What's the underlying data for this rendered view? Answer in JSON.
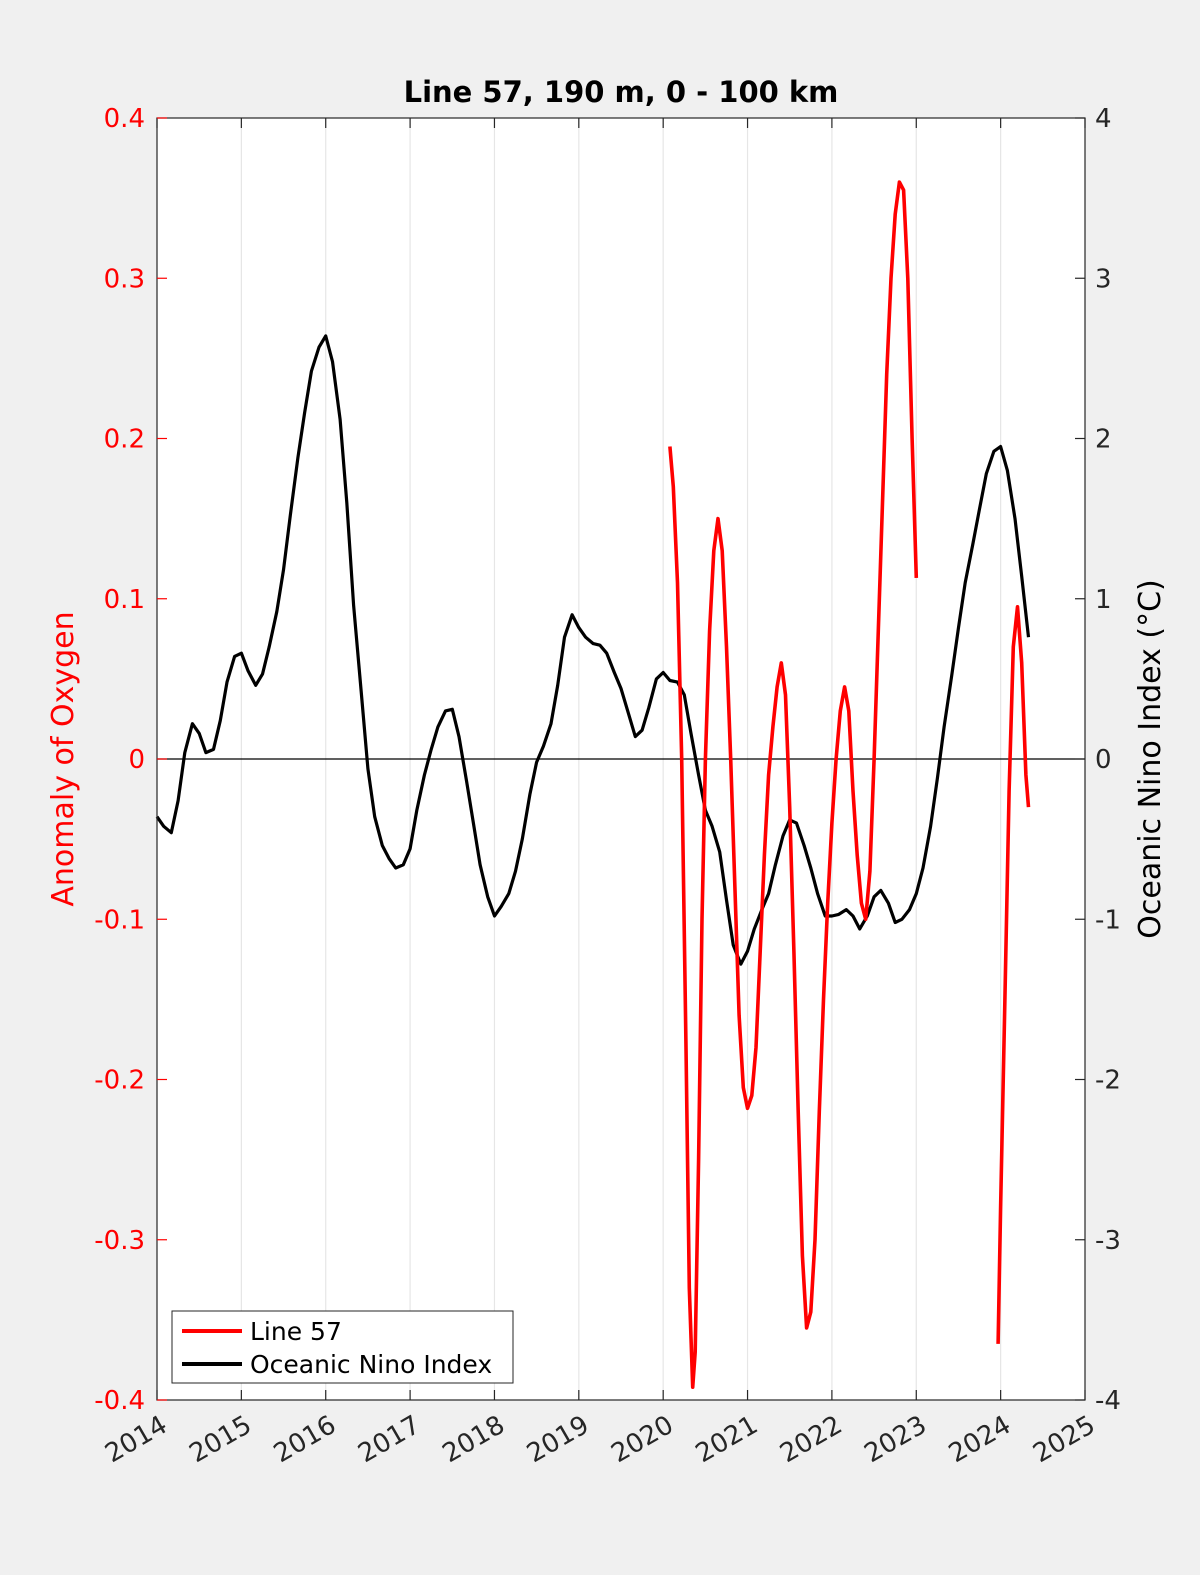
{
  "chart_data": {
    "type": "line",
    "title": "Line 57, 190 m, 0 - 100 km",
    "ylabel_left": "Anomaly of Oxygen",
    "ylabel_right": "Oceanic Nino Index (°C)",
    "xlim": [
      2014,
      2025
    ],
    "ylim_left": [
      -0.4,
      0.4
    ],
    "ylim_right": [
      -4,
      4
    ],
    "x_ticks": [
      "2014",
      "2015",
      "2016",
      "2017",
      "2018",
      "2019",
      "2020",
      "2021",
      "2022",
      "2023",
      "2024",
      "2025"
    ],
    "y_ticks_left": [
      "0.4",
      "0.3",
      "0.2",
      "0.1",
      "0",
      "-0.1",
      "-0.2",
      "-0.3",
      "-0.4"
    ],
    "y_ticks_right": [
      "4",
      "3",
      "2",
      "1",
      "0",
      "-1",
      "-2",
      "-3",
      "-4"
    ],
    "grid": "vertical",
    "legend_position": "bottom-left",
    "colors": {
      "line57": "#ff0000",
      "oni": "#000000",
      "left_axis": "#ff0000",
      "right_axis": "#000000"
    },
    "series": [
      {
        "name": "Line 57",
        "axis": "left",
        "segments": [
          [
            [
              2020.08,
              0.195
            ],
            [
              2020.12,
              0.17
            ],
            [
              2020.17,
              0.11
            ],
            [
              2020.22,
              0.0
            ],
            [
              2020.27,
              -0.18
            ],
            [
              2020.31,
              -0.33
            ],
            [
              2020.35,
              -0.392
            ],
            [
              2020.38,
              -0.37
            ],
            [
              2020.42,
              -0.25
            ],
            [
              2020.46,
              -0.1
            ],
            [
              2020.5,
              0.0
            ],
            [
              2020.55,
              0.08
            ],
            [
              2020.6,
              0.13
            ],
            [
              2020.65,
              0.15
            ],
            [
              2020.7,
              0.13
            ],
            [
              2020.75,
              0.07
            ],
            [
              2020.8,
              0.0
            ],
            [
              2020.85,
              -0.08
            ],
            [
              2020.9,
              -0.16
            ],
            [
              2020.95,
              -0.205
            ],
            [
              2021.0,
              -0.218
            ],
            [
              2021.05,
              -0.21
            ],
            [
              2021.1,
              -0.18
            ],
            [
              2021.15,
              -0.12
            ],
            [
              2021.2,
              -0.06
            ],
            [
              2021.25,
              -0.01
            ],
            [
              2021.3,
              0.02
            ],
            [
              2021.35,
              0.045
            ],
            [
              2021.4,
              0.06
            ],
            [
              2021.45,
              0.04
            ],
            [
              2021.5,
              -0.03
            ],
            [
              2021.55,
              -0.12
            ],
            [
              2021.6,
              -0.22
            ],
            [
              2021.65,
              -0.31
            ],
            [
              2021.7,
              -0.355
            ],
            [
              2021.75,
              -0.345
            ],
            [
              2021.8,
              -0.3
            ],
            [
              2021.85,
              -0.22
            ],
            [
              2021.9,
              -0.15
            ],
            [
              2021.95,
              -0.09
            ],
            [
              2022.0,
              -0.04
            ],
            [
              2022.05,
              0.0
            ],
            [
              2022.1,
              0.03
            ],
            [
              2022.15,
              0.045
            ],
            [
              2022.2,
              0.03
            ],
            [
              2022.25,
              -0.02
            ],
            [
              2022.3,
              -0.06
            ],
            [
              2022.35,
              -0.09
            ],
            [
              2022.4,
              -0.1
            ],
            [
              2022.45,
              -0.07
            ],
            [
              2022.5,
              0.0
            ],
            [
              2022.55,
              0.08
            ],
            [
              2022.6,
              0.16
            ],
            [
              2022.65,
              0.24
            ],
            [
              2022.7,
              0.3
            ],
            [
              2022.75,
              0.34
            ],
            [
              2022.8,
              0.36
            ],
            [
              2022.85,
              0.355
            ],
            [
              2022.9,
              0.3
            ],
            [
              2022.95,
              0.2
            ],
            [
              2023.0,
              0.113
            ]
          ],
          [
            [
              2023.97,
              -0.365
            ],
            [
              2024.0,
              -0.28
            ],
            [
              2024.05,
              -0.15
            ],
            [
              2024.1,
              -0.02
            ],
            [
              2024.15,
              0.07
            ],
            [
              2024.2,
              0.095
            ],
            [
              2024.25,
              0.06
            ],
            [
              2024.3,
              -0.01
            ],
            [
              2024.33,
              -0.03
            ]
          ]
        ]
      },
      {
        "name": "Oceanic Nino Index",
        "axis": "right",
        "points": [
          [
            2014.0,
            -0.36
          ],
          [
            2014.08,
            -0.42
          ],
          [
            2014.17,
            -0.46
          ],
          [
            2014.25,
            -0.26
          ],
          [
            2014.33,
            0.04
          ],
          [
            2014.42,
            0.22
          ],
          [
            2014.5,
            0.16
          ],
          [
            2014.58,
            0.04
          ],
          [
            2014.67,
            0.06
          ],
          [
            2014.75,
            0.24
          ],
          [
            2014.83,
            0.48
          ],
          [
            2014.92,
            0.64
          ],
          [
            2015.0,
            0.66
          ],
          [
            2015.08,
            0.55
          ],
          [
            2015.17,
            0.46
          ],
          [
            2015.25,
            0.53
          ],
          [
            2015.33,
            0.7
          ],
          [
            2015.42,
            0.92
          ],
          [
            2015.5,
            1.18
          ],
          [
            2015.58,
            1.52
          ],
          [
            2015.67,
            1.88
          ],
          [
            2015.75,
            2.16
          ],
          [
            2015.83,
            2.42
          ],
          [
            2015.92,
            2.57
          ],
          [
            2016.0,
            2.64
          ],
          [
            2016.08,
            2.48
          ],
          [
            2016.17,
            2.12
          ],
          [
            2016.25,
            1.6
          ],
          [
            2016.33,
            0.96
          ],
          [
            2016.42,
            0.42
          ],
          [
            2016.5,
            -0.06
          ],
          [
            2016.58,
            -0.36
          ],
          [
            2016.67,
            -0.54
          ],
          [
            2016.75,
            -0.62
          ],
          [
            2016.83,
            -0.68
          ],
          [
            2016.92,
            -0.66
          ],
          [
            2017.0,
            -0.56
          ],
          [
            2017.08,
            -0.32
          ],
          [
            2017.17,
            -0.1
          ],
          [
            2017.25,
            0.06
          ],
          [
            2017.33,
            0.2
          ],
          [
            2017.42,
            0.3
          ],
          [
            2017.5,
            0.31
          ],
          [
            2017.58,
            0.14
          ],
          [
            2017.67,
            -0.14
          ],
          [
            2017.75,
            -0.4
          ],
          [
            2017.83,
            -0.66
          ],
          [
            2017.92,
            -0.86
          ],
          [
            2018.0,
            -0.98
          ],
          [
            2018.08,
            -0.92
          ],
          [
            2018.17,
            -0.84
          ],
          [
            2018.25,
            -0.7
          ],
          [
            2018.33,
            -0.5
          ],
          [
            2018.42,
            -0.22
          ],
          [
            2018.5,
            -0.02
          ],
          [
            2018.58,
            0.08
          ],
          [
            2018.67,
            0.22
          ],
          [
            2018.75,
            0.46
          ],
          [
            2018.83,
            0.76
          ],
          [
            2018.92,
            0.9
          ],
          [
            2019.0,
            0.82
          ],
          [
            2019.08,
            0.76
          ],
          [
            2019.17,
            0.72
          ],
          [
            2019.25,
            0.71
          ],
          [
            2019.33,
            0.66
          ],
          [
            2019.42,
            0.54
          ],
          [
            2019.5,
            0.44
          ],
          [
            2019.58,
            0.3
          ],
          [
            2019.67,
            0.14
          ],
          [
            2019.75,
            0.18
          ],
          [
            2019.83,
            0.32
          ],
          [
            2019.92,
            0.5
          ],
          [
            2020.0,
            0.54
          ],
          [
            2020.08,
            0.49
          ],
          [
            2020.17,
            0.48
          ],
          [
            2020.25,
            0.4
          ],
          [
            2020.33,
            0.16
          ],
          [
            2020.42,
            -0.1
          ],
          [
            2020.5,
            -0.32
          ],
          [
            2020.58,
            -0.42
          ],
          [
            2020.67,
            -0.58
          ],
          [
            2020.75,
            -0.88
          ],
          [
            2020.83,
            -1.16
          ],
          [
            2020.92,
            -1.28
          ],
          [
            2021.0,
            -1.2
          ],
          [
            2021.08,
            -1.06
          ],
          [
            2021.17,
            -0.94
          ],
          [
            2021.25,
            -0.84
          ],
          [
            2021.33,
            -0.66
          ],
          [
            2021.42,
            -0.48
          ],
          [
            2021.5,
            -0.38
          ],
          [
            2021.58,
            -0.4
          ],
          [
            2021.67,
            -0.54
          ],
          [
            2021.75,
            -0.68
          ],
          [
            2021.83,
            -0.84
          ],
          [
            2021.92,
            -0.98
          ],
          [
            2022.0,
            -0.98
          ],
          [
            2022.08,
            -0.97
          ],
          [
            2022.17,
            -0.94
          ],
          [
            2022.25,
            -0.98
          ],
          [
            2022.33,
            -1.06
          ],
          [
            2022.42,
            -0.98
          ],
          [
            2022.5,
            -0.86
          ],
          [
            2022.58,
            -0.82
          ],
          [
            2022.67,
            -0.9
          ],
          [
            2022.75,
            -1.02
          ],
          [
            2022.83,
            -1.0
          ],
          [
            2022.92,
            -0.94
          ],
          [
            2023.0,
            -0.84
          ],
          [
            2023.08,
            -0.68
          ],
          [
            2023.17,
            -0.42
          ],
          [
            2023.25,
            -0.12
          ],
          [
            2023.33,
            0.2
          ],
          [
            2023.42,
            0.52
          ],
          [
            2023.5,
            0.82
          ],
          [
            2023.58,
            1.1
          ],
          [
            2023.67,
            1.34
          ],
          [
            2023.75,
            1.56
          ],
          [
            2023.83,
            1.78
          ],
          [
            2023.92,
            1.92
          ],
          [
            2024.0,
            1.95
          ],
          [
            2024.08,
            1.8
          ],
          [
            2024.17,
            1.5
          ],
          [
            2024.25,
            1.14
          ],
          [
            2024.33,
            0.76
          ]
        ]
      }
    ]
  }
}
